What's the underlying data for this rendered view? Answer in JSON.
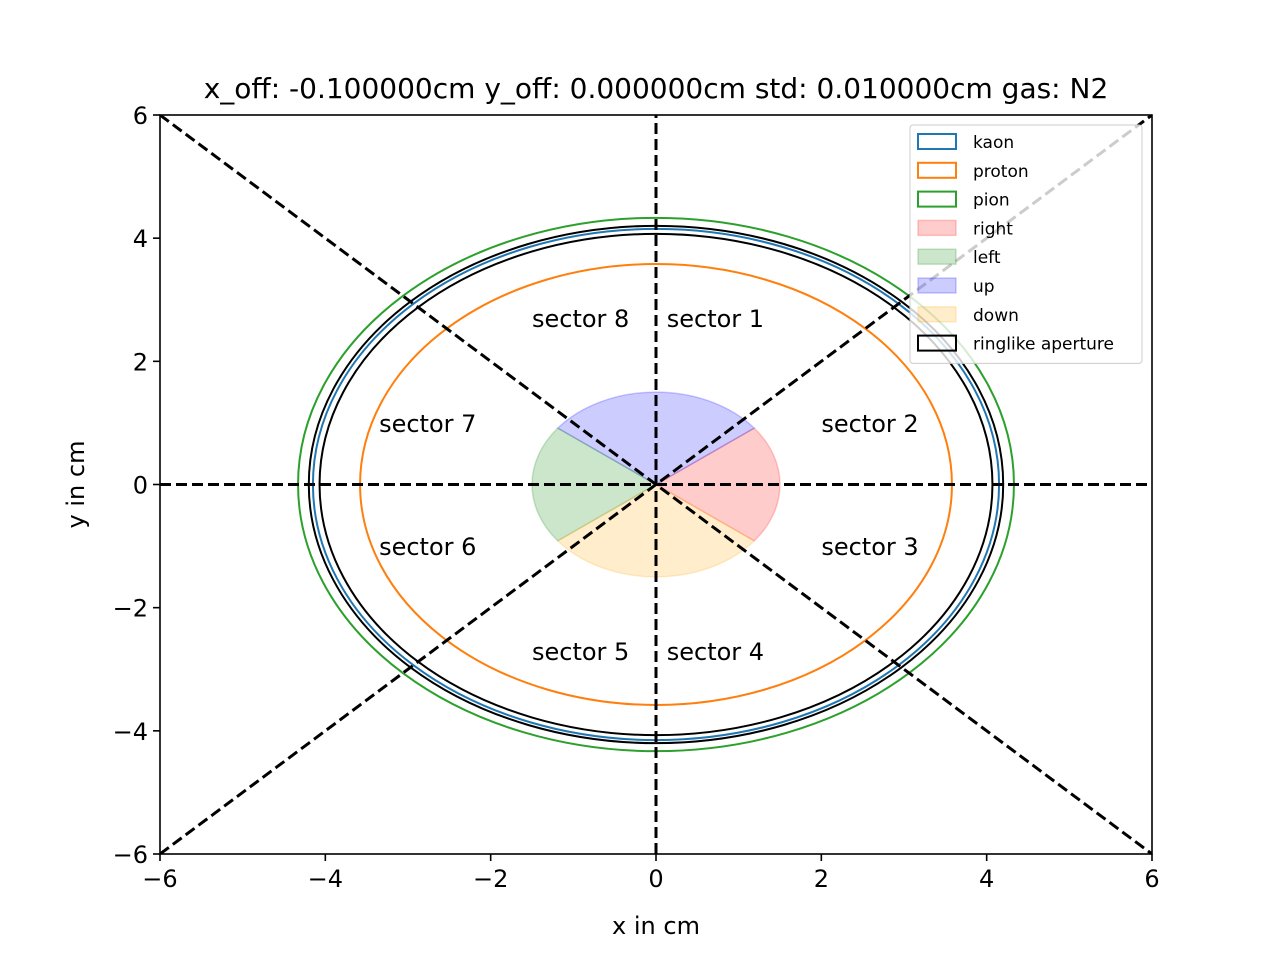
{
  "chart_data": {
    "type": "line",
    "title": "x_off: -0.100000cm y_off: 0.000000cm std: 0.010000cm gas: N2",
    "xlabel": "x in cm",
    "ylabel": "y in cm",
    "xlim": [
      -6,
      6
    ],
    "ylim": [
      -6,
      6
    ],
    "xticks": [
      -6,
      -4,
      -2,
      0,
      2,
      4,
      6
    ],
    "yticks": [
      -6,
      -4,
      -2,
      0,
      2,
      4,
      6
    ],
    "xtick_labels": [
      "−6",
      "−4",
      "−2",
      "0",
      "2",
      "4",
      "6"
    ],
    "ytick_labels": [
      "−6",
      "−4",
      "−2",
      "0",
      "2",
      "4",
      "6"
    ],
    "grid": false,
    "legend_position": "top-right",
    "rings": [
      {
        "name": "kaon",
        "cx": 0,
        "cy": 0,
        "r": 4.15,
        "color": "#1f77b4",
        "kind": "line"
      },
      {
        "name": "proton",
        "cx": 0,
        "cy": 0,
        "r": 3.58,
        "color": "#ff7f0e",
        "kind": "line"
      },
      {
        "name": "pion",
        "cx": 0,
        "cy": 0,
        "r": 4.33,
        "color": "#2ca02c",
        "kind": "line"
      }
    ],
    "aperture": {
      "name": "ringlike aperture",
      "color": "#000000",
      "r_inner": 4.07,
      "r_outer": 4.2
    },
    "regions": [
      {
        "name": "right",
        "color": "#ff0000",
        "alpha": 0.2,
        "a1": -37.6,
        "a2": 37.6
      },
      {
        "name": "up",
        "color": "#0000ff",
        "alpha": 0.2,
        "a1": 37.6,
        "a2": 142.4
      },
      {
        "name": "left",
        "color": "#008000",
        "alpha": 0.2,
        "a1": 142.4,
        "a2": 217.6
      },
      {
        "name": "down",
        "color": "#ffa500",
        "alpha": 0.2,
        "a1": 217.6,
        "a2": 322.4
      }
    ],
    "region_radius": 1.5,
    "divider_lines": [
      {
        "x": [
          -6,
          6
        ],
        "y": [
          0,
          0
        ]
      },
      {
        "x": [
          0,
          0
        ],
        "y": [
          -6,
          6
        ]
      },
      {
        "x": [
          -6,
          6
        ],
        "y": [
          6,
          -6
        ]
      },
      {
        "x": [
          -6,
          6
        ],
        "y": [
          -6,
          6
        ]
      }
    ],
    "sector_labels": [
      {
        "text": "sector 1",
        "x": 0.13,
        "y": 2.7
      },
      {
        "text": "sector 2",
        "x": 2.0,
        "y": 1.0
      },
      {
        "text": "sector 3",
        "x": 2.0,
        "y": -1.0
      },
      {
        "text": "sector 4",
        "x": 0.13,
        "y": -2.7
      },
      {
        "text": "sector 5",
        "x": -1.5,
        "y": -2.7
      },
      {
        "text": "sector 6",
        "x": -3.35,
        "y": -1.0
      },
      {
        "text": "sector 7",
        "x": -3.35,
        "y": 1.0
      },
      {
        "text": "sector 8",
        "x": -1.5,
        "y": 2.7
      }
    ],
    "legend": [
      {
        "label": "kaon",
        "kind": "line",
        "color": "#1f77b4"
      },
      {
        "label": "proton",
        "kind": "line",
        "color": "#ff7f0e"
      },
      {
        "label": "pion",
        "kind": "line",
        "color": "#2ca02c"
      },
      {
        "label": "right",
        "kind": "fill",
        "color": "#ff0000"
      },
      {
        "label": "left",
        "kind": "fill",
        "color": "#008000"
      },
      {
        "label": "up",
        "kind": "fill",
        "color": "#0000ff"
      },
      {
        "label": "down",
        "kind": "fill",
        "color": "#ffa500"
      },
      {
        "label": "ringlike aperture",
        "kind": "line",
        "color": "#000000"
      }
    ]
  }
}
